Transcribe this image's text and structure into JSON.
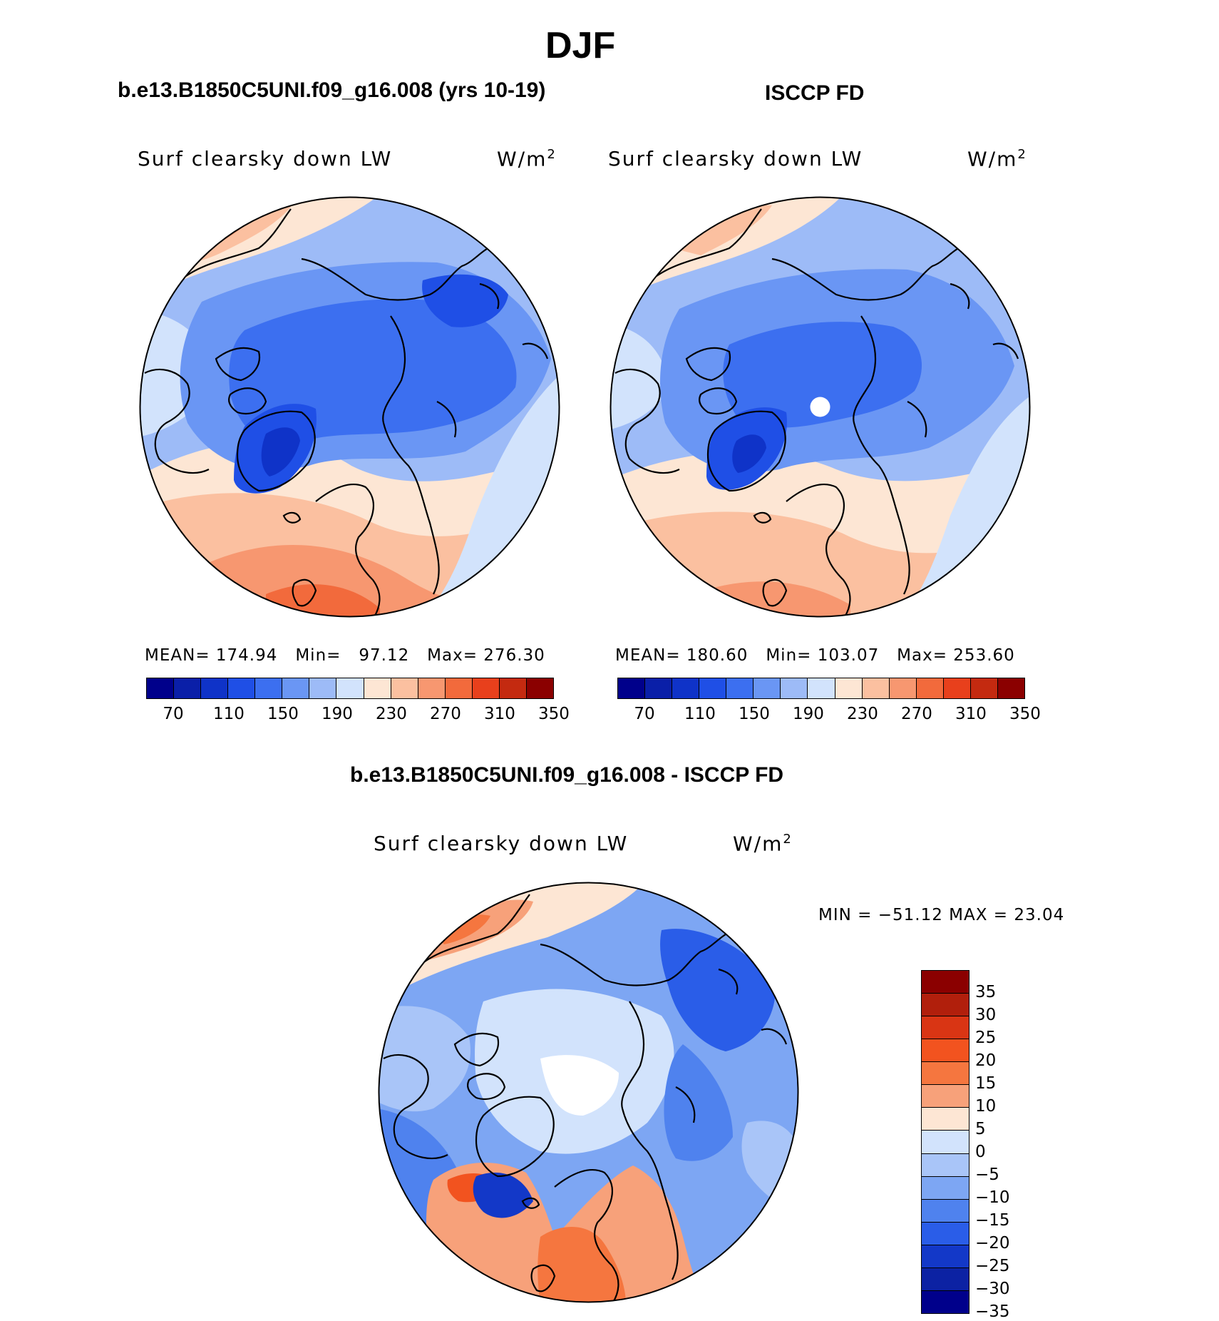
{
  "season": "DJF",
  "panels": [
    {
      "case_title": "b.e13.B1850C5UNI.f09_g16.008 (yrs 10-19)",
      "variable": "Surf clearsky down LW",
      "units": "W/m",
      "units_exp": "2",
      "stats": {
        "mean_label": "MEAN=",
        "mean": "174.94",
        "min_label": "Min=",
        "min": "97.12",
        "max_label": "Max=",
        "max": "276.30"
      },
      "colorbar_ticks": [
        "70",
        "110",
        "150",
        "190",
        "230",
        "270",
        "310",
        "350"
      ]
    },
    {
      "case_title": "ISCCP FD",
      "variable": "Surf clearsky down LW",
      "units": "W/m",
      "units_exp": "2",
      "stats": {
        "mean_label": "MEAN=",
        "mean": "180.60",
        "min_label": "Min=",
        "min": "103.07",
        "max_label": "Max=",
        "max": "253.60"
      },
      "colorbar_ticks": [
        "70",
        "110",
        "150",
        "190",
        "230",
        "270",
        "310",
        "350"
      ]
    }
  ],
  "diff_panel": {
    "case_title": "b.e13.B1850C5UNI.f09_g16.008 - ISCCP FD",
    "variable": "Surf clearsky down LW",
    "units": "W/m",
    "units_exp": "2",
    "minmax": "MIN = −51.12 MAX =   23.04",
    "colorbar_ticks": [
      "35",
      "30",
      "25",
      "20",
      "15",
      "10",
      "5",
      "0",
      "−5",
      "−10",
      "−15",
      "−20",
      "−25",
      "−30",
      "−35"
    ]
  },
  "colors": {
    "abs_scale": [
      "#00008b",
      "#0a1fa8",
      "#0f33c8",
      "#1f4fe6",
      "#3c6ff0",
      "#6a96f4",
      "#9dbbf7",
      "#d2e3fc",
      "#fde6d4",
      "#fbc0a0",
      "#f79770",
      "#f26a3c",
      "#e8401c",
      "#c42a10",
      "#8b0000"
    ],
    "diff_scale_top_to_bottom": [
      "#8b0000",
      "#b11f0c",
      "#d93514",
      "#f2531f",
      "#f5763f",
      "#f7a17a",
      "#fde6d4",
      "#d2e3fc",
      "#a9c5f8",
      "#7da6f3",
      "#4f82ee",
      "#2a5de8",
      "#1338c8",
      "#0c22a3",
      "#00008b"
    ],
    "coastline": "#000000",
    "pole_mask": "#ffffff"
  },
  "icons": [
    "coastline-overlay",
    "pole-mask-dot"
  ]
}
